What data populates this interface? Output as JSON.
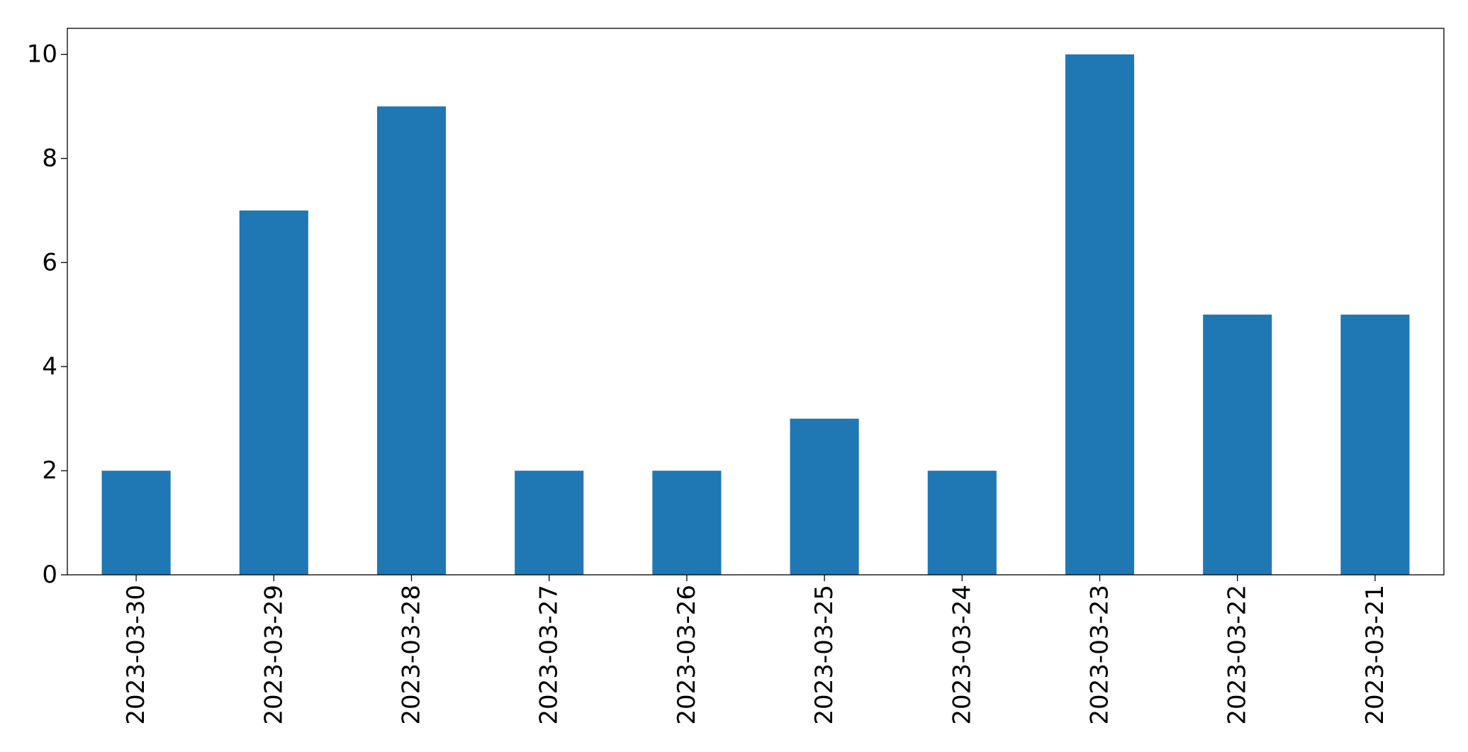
{
  "chart_data": {
    "type": "bar",
    "title": "",
    "xlabel": "",
    "ylabel": "",
    "categories": [
      "2023-03-30",
      "2023-03-29",
      "2023-03-28",
      "2023-03-27",
      "2023-03-26",
      "2023-03-25",
      "2023-03-24",
      "2023-03-23",
      "2023-03-22",
      "2023-03-21"
    ],
    "values": [
      2,
      7,
      9,
      2,
      2,
      3,
      2,
      10,
      5,
      5
    ],
    "ylim": [
      0,
      10.5
    ],
    "yticks": [
      0,
      2,
      4,
      6,
      8,
      10
    ],
    "grid": false,
    "legend": "none",
    "bar_color": "#1f77b4",
    "x_tick_rotation": "vertical"
  }
}
